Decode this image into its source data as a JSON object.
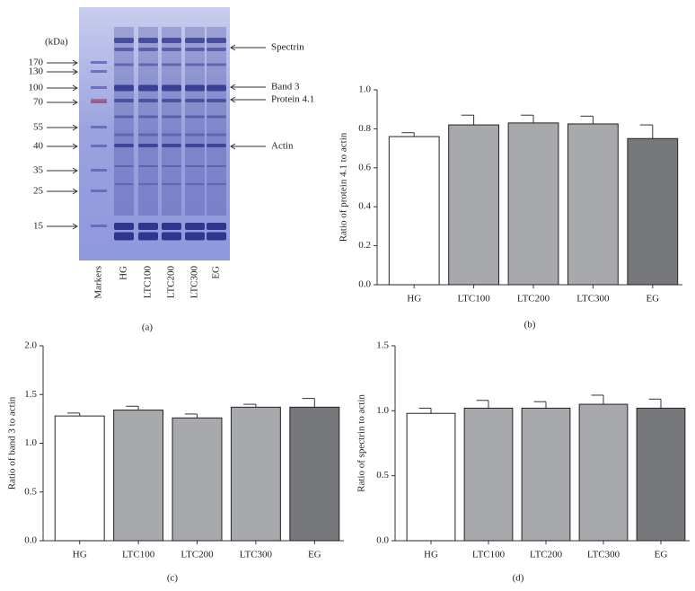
{
  "gel": {
    "unit_label": "(kDa)",
    "panel_label": "(a)",
    "markers": [
      "170",
      "130",
      "100",
      "70",
      "55",
      "40",
      "35",
      "25",
      "15"
    ],
    "lanes": [
      "Markers",
      "HG",
      "LTC100",
      "LTC200",
      "LTC300",
      "EG"
    ],
    "bands": [
      "Spectrin",
      "Band 3",
      "Protein 4.1",
      "Actin"
    ]
  },
  "chart_data": [
    {
      "type": "bar",
      "panel_label": "(b)",
      "ylabel": "Ratio of protein 4.1 to actin",
      "categories": [
        "HG",
        "LTC100",
        "LTC200",
        "LTC300",
        "EG"
      ],
      "values": [
        0.76,
        0.82,
        0.83,
        0.825,
        0.75
      ],
      "errors": [
        0.02,
        0.05,
        0.04,
        0.04,
        0.07
      ],
      "colors": [
        "#ffffff",
        "#a8a9ad",
        "#a8a9ad",
        "#a8a9ad",
        "#77787b"
      ],
      "ylim": [
        0,
        1
      ],
      "yticks": [
        {
          "value": 0,
          "label": "0.0"
        },
        0.2,
        0.4,
        0.6,
        0.8,
        {
          "value": 1,
          "label": "1.0"
        }
      ]
    },
    {
      "type": "bar",
      "panel_label": "(c)",
      "ylabel": "Ratio of band 3 to actin",
      "categories": [
        "HG",
        "LTC100",
        "LTC200",
        "LTC300",
        "EG"
      ],
      "values": [
        1.28,
        1.34,
        1.26,
        1.37,
        1.37
      ],
      "errors": [
        0.03,
        0.04,
        0.04,
        0.03,
        0.09
      ],
      "colors": [
        "#ffffff",
        "#a8a9ad",
        "#a8a9ad",
        "#a8a9ad",
        "#77787b"
      ],
      "ylim": [
        0,
        2
      ],
      "yticks": [
        {
          "value": 0,
          "label": "0.0"
        },
        0.5,
        {
          "value": 1,
          "label": "1.0"
        },
        1.5,
        {
          "value": 2,
          "label": "2.0"
        }
      ]
    },
    {
      "type": "bar",
      "panel_label": "(d)",
      "ylabel": "Ratio of spectrin to actin",
      "categories": [
        "HG",
        "LTC100",
        "LTC200",
        "LTC300",
        "EG"
      ],
      "values": [
        0.98,
        1.02,
        1.02,
        1.05,
        1.02
      ],
      "errors": [
        0.04,
        0.06,
        0.05,
        0.07,
        0.07
      ],
      "colors": [
        "#ffffff",
        "#a8a9ad",
        "#a8a9ad",
        "#a8a9ad",
        "#77787b"
      ],
      "ylim": [
        0,
        1.5
      ],
      "yticks": [
        {
          "value": 0,
          "label": "0.0"
        },
        0.5,
        {
          "value": 1,
          "label": "1.0"
        },
        1.5
      ]
    }
  ]
}
